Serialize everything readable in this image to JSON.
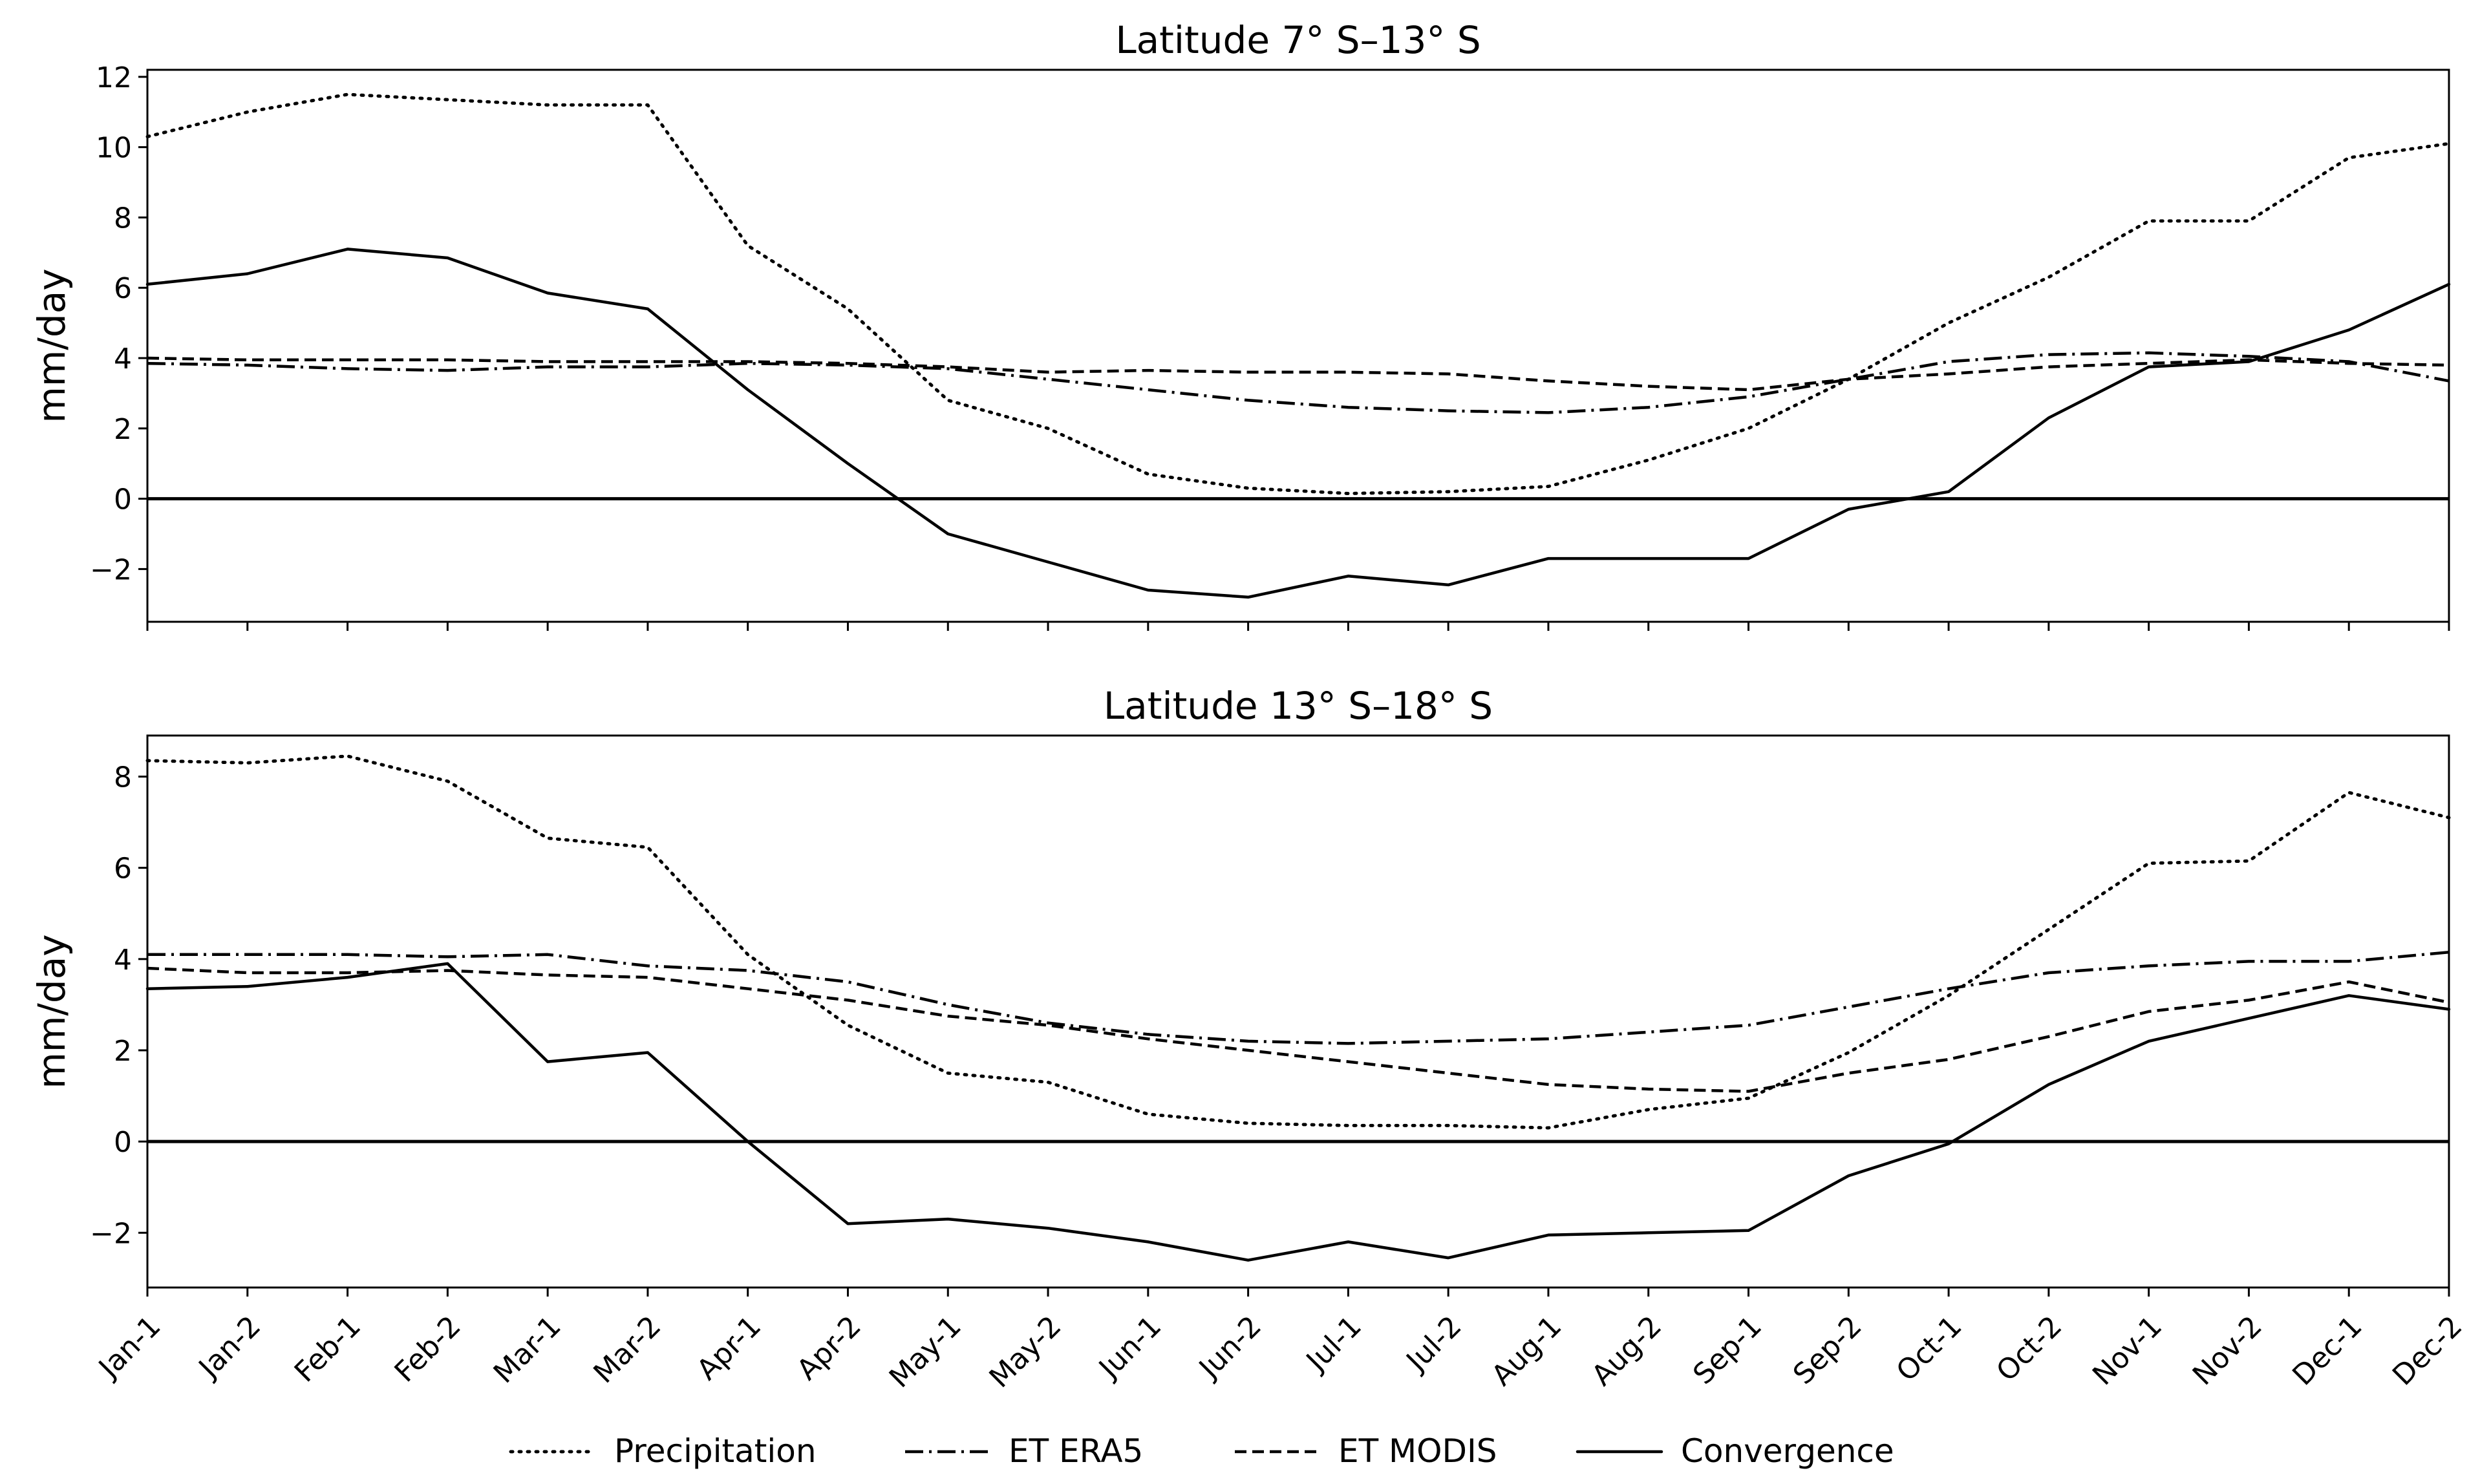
{
  "chart_data": [
    {
      "type": "line",
      "title": "Latitude 7° S–13° S",
      "xlabel": "",
      "ylabel": "mm/day",
      "ylim": [
        -3.5,
        12.2
      ],
      "yticks": [
        -2,
        0,
        2,
        4,
        6,
        8,
        10,
        12
      ],
      "ytick_labels": [
        "−2",
        "0",
        "2",
        "4",
        "6",
        "8",
        "10",
        "12"
      ],
      "show_xtick_labels": false,
      "zero_line": true,
      "series": [
        {
          "name": "Precipitation",
          "style": "dotted",
          "values": [
            10.3,
            11.0,
            11.5,
            11.35,
            11.2,
            11.2,
            7.2,
            5.4,
            2.8,
            2.0,
            0.7,
            0.3,
            0.15,
            0.2,
            0.35,
            1.1,
            2.0,
            3.4,
            5.0,
            6.3,
            7.9,
            7.9,
            9.7,
            10.1
          ]
        },
        {
          "name": "ET ERA5",
          "style": "dashdot",
          "values": [
            3.85,
            3.8,
            3.7,
            3.65,
            3.75,
            3.75,
            3.85,
            3.8,
            3.7,
            3.4,
            3.1,
            2.8,
            2.6,
            2.5,
            2.45,
            2.6,
            2.9,
            3.4,
            3.9,
            4.1,
            4.15,
            4.05,
            3.9,
            3.35
          ]
        },
        {
          "name": "ET MODIS",
          "style": "dashed",
          "values": [
            4.0,
            3.95,
            3.95,
            3.95,
            3.9,
            3.9,
            3.9,
            3.85,
            3.75,
            3.6,
            3.65,
            3.6,
            3.6,
            3.55,
            3.35,
            3.2,
            3.1,
            3.4,
            3.55,
            3.75,
            3.85,
            3.95,
            3.85,
            3.8
          ]
        },
        {
          "name": "Convergence",
          "style": "solid",
          "values": [
            6.1,
            6.4,
            7.1,
            6.85,
            5.85,
            5.4,
            3.1,
            1.0,
            -1.0,
            -1.8,
            -2.6,
            -2.8,
            -2.2,
            -2.45,
            -1.7,
            -1.7,
            -1.7,
            -0.3,
            0.2,
            2.3,
            3.75,
            3.9,
            4.8,
            6.1
          ]
        }
      ]
    },
    {
      "type": "line",
      "title": "Latitude 13° S–18° S",
      "xlabel": "",
      "ylabel": "mm/day",
      "ylim": [
        -3.2,
        8.9
      ],
      "yticks": [
        -2,
        0,
        2,
        4,
        6,
        8
      ],
      "ytick_labels": [
        "−2",
        "0",
        "2",
        "4",
        "6",
        "8"
      ],
      "show_xtick_labels": true,
      "zero_line": true,
      "series": [
        {
          "name": "Precipitation",
          "style": "dotted",
          "values": [
            8.35,
            8.3,
            8.45,
            7.9,
            6.65,
            6.45,
            4.1,
            2.55,
            1.5,
            1.3,
            0.6,
            0.4,
            0.35,
            0.35,
            0.3,
            0.7,
            0.95,
            1.95,
            3.2,
            4.65,
            6.1,
            6.15,
            7.65,
            7.1
          ]
        },
        {
          "name": "ET ERA5",
          "style": "dashdot",
          "values": [
            4.1,
            4.1,
            4.1,
            4.05,
            4.1,
            3.85,
            3.75,
            3.5,
            3.0,
            2.6,
            2.35,
            2.2,
            2.15,
            2.2,
            2.25,
            2.4,
            2.55,
            2.95,
            3.35,
            3.7,
            3.85,
            3.95,
            3.95,
            4.15
          ]
        },
        {
          "name": "ET MODIS",
          "style": "dashed",
          "values": [
            3.8,
            3.7,
            3.7,
            3.75,
            3.65,
            3.6,
            3.35,
            3.1,
            2.75,
            2.55,
            2.25,
            2.0,
            1.75,
            1.5,
            1.25,
            1.15,
            1.1,
            1.5,
            1.8,
            2.3,
            2.85,
            3.1,
            3.5,
            3.05
          ]
        },
        {
          "name": "Convergence",
          "style": "solid",
          "values": [
            3.35,
            3.4,
            3.6,
            3.9,
            1.75,
            1.95,
            0.0,
            -1.8,
            -1.7,
            -1.9,
            -2.2,
            -2.6,
            -2.2,
            -2.55,
            -2.05,
            -2.0,
            -1.95,
            -0.75,
            -0.05,
            1.25,
            2.2,
            2.7,
            3.2,
            2.9
          ]
        }
      ]
    }
  ],
  "categories": [
    "Jan-1",
    "Jan-2",
    "Feb-1",
    "Feb-2",
    "Mar-1",
    "Mar-2",
    "Apr-1",
    "Apr-2",
    "May-1",
    "May-2",
    "Jun-1",
    "Jun-2",
    "Jul-1",
    "Jul-2",
    "Aug-1",
    "Aug-2",
    "Sep-1",
    "Sep-2",
    "Oct-1",
    "Oct-2",
    "Nov-1",
    "Nov-2",
    "Dec-1",
    "Dec-2"
  ],
  "legend": {
    "placement": "bottom-center",
    "entries": [
      {
        "label": "Precipitation",
        "style": "dotted"
      },
      {
        "label": "ET ERA5",
        "style": "dashdot"
      },
      {
        "label": "ET MODIS",
        "style": "dashed"
      },
      {
        "label": "Convergence",
        "style": "solid"
      }
    ]
  },
  "colors": {
    "line": "#000000",
    "background": "#ffffff"
  }
}
